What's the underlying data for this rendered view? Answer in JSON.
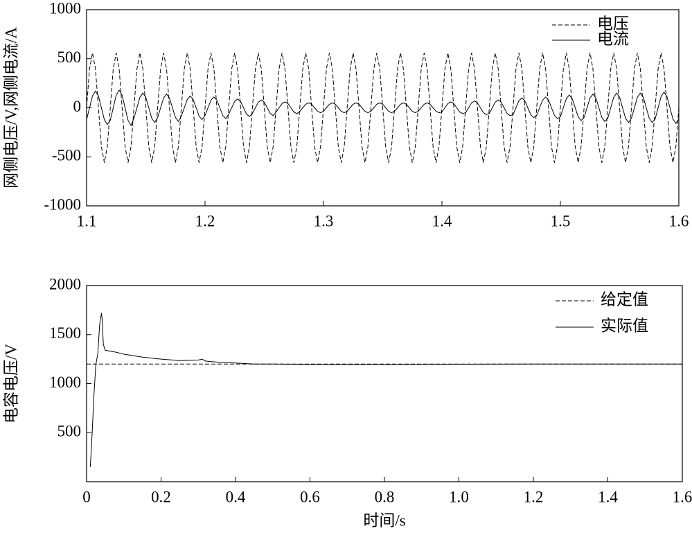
{
  "chart_data": [
    {
      "type": "line",
      "ylabel": "网侧电压/V,网侧电流/A",
      "xlim": [
        1.1,
        1.6
      ],
      "xticks": [
        1.1,
        1.2,
        1.3,
        1.4,
        1.5,
        1.6
      ],
      "ylim": [
        -1000,
        1000
      ],
      "yticks": [
        -1000,
        -500,
        0,
        500,
        1000
      ],
      "legend": "upper right",
      "x": [
        1.1,
        1.1025,
        1.105,
        1.1075,
        1.11,
        1.1125,
        1.115,
        1.1175,
        1.12,
        1.1225,
        1.125,
        1.1275,
        1.13,
        1.1325,
        1.135,
        1.1375,
        1.14,
        1.1425,
        1.145,
        1.1475,
        1.15,
        1.1525,
        1.155,
        1.1575,
        1.16,
        1.1625,
        1.165,
        1.1675,
        1.17,
        1.1725,
        1.175,
        1.1775,
        1.18,
        1.1825,
        1.185,
        1.1875,
        1.19,
        1.1925,
        1.195,
        1.1975,
        1.2,
        1.2025,
        1.205,
        1.2075,
        1.21,
        1.2125,
        1.215,
        1.2175,
        1.22,
        1.2225,
        1.225,
        1.2275,
        1.23,
        1.2325,
        1.235,
        1.2375,
        1.24,
        1.2425,
        1.245,
        1.2475,
        1.25,
        1.2525,
        1.255,
        1.2575,
        1.26,
        1.2625,
        1.265,
        1.2675,
        1.27,
        1.2725,
        1.275,
        1.2775,
        1.28,
        1.2825,
        1.285,
        1.2875,
        1.29,
        1.2925,
        1.295,
        1.2975,
        1.3,
        1.3025,
        1.305,
        1.3075,
        1.31,
        1.3125,
        1.315,
        1.3175,
        1.32,
        1.3225,
        1.325,
        1.3275,
        1.33,
        1.3325,
        1.335,
        1.3375,
        1.34,
        1.3425,
        1.345,
        1.3475,
        1.35,
        1.3525,
        1.355,
        1.3575,
        1.36,
        1.3625,
        1.365,
        1.3675,
        1.37,
        1.3725,
        1.375,
        1.3775,
        1.38,
        1.3825,
        1.385,
        1.3875,
        1.39,
        1.3925,
        1.395,
        1.3975,
        1.4,
        1.4025,
        1.405,
        1.4075,
        1.41,
        1.4125,
        1.415,
        1.4175,
        1.42,
        1.4225,
        1.425,
        1.4275,
        1.43,
        1.4325,
        1.435,
        1.4375,
        1.44,
        1.4425,
        1.445,
        1.4475,
        1.45,
        1.4525,
        1.455,
        1.4575,
        1.46,
        1.4625,
        1.465,
        1.4675,
        1.47,
        1.4725,
        1.475,
        1.4775,
        1.48,
        1.4825,
        1.485,
        1.4875,
        1.49,
        1.4925,
        1.495,
        1.4975,
        1.5,
        1.5025,
        1.505,
        1.5075,
        1.51,
        1.5125,
        1.515,
        1.5175,
        1.52,
        1.5225,
        1.525,
        1.5275,
        1.53,
        1.5325,
        1.535,
        1.5375,
        1.54,
        1.5425,
        1.545,
        1.5475,
        1.55,
        1.5525,
        1.555,
        1.5575,
        1.56,
        1.5625,
        1.565,
        1.5675,
        1.57,
        1.5725,
        1.575,
        1.5775,
        1.58,
        1.5825,
        1.585,
        1.5875,
        1.59,
        1.5925,
        1.595,
        1.5975,
        1.6
      ],
      "series": [
        {
          "name": "电压",
          "color": "#000000",
          "style": "dashed",
          "values": [
            0,
            396,
            560,
            396,
            0,
            -396,
            -560,
            -396,
            0,
            396,
            560,
            396,
            0,
            -396,
            -560,
            -396,
            0,
            396,
            560,
            396,
            0,
            -396,
            -560,
            -396,
            0,
            396,
            560,
            396,
            0,
            -396,
            -560,
            -396,
            0,
            396,
            560,
            396,
            0,
            -396,
            -560,
            -396,
            0,
            396,
            560,
            396,
            0,
            -396,
            -560,
            -396,
            0,
            396,
            560,
            396,
            0,
            -396,
            -560,
            -396,
            0,
            396,
            560,
            396,
            0,
            -396,
            -560,
            -396,
            0,
            396,
            560,
            396,
            0,
            -396,
            -560,
            -396,
            0,
            396,
            560,
            396,
            0,
            -396,
            -560,
            -396,
            0,
            396,
            560,
            396,
            0,
            -396,
            -560,
            -396,
            0,
            396,
            560,
            396,
            0,
            -396,
            -560,
            -396,
            0,
            396,
            560,
            396,
            0,
            -396,
            -560,
            -396,
            0,
            396,
            560,
            396,
            0,
            -396,
            -560,
            -396,
            0,
            396,
            560,
            396,
            0,
            -396,
            -560,
            -396,
            0,
            396,
            560,
            396,
            0,
            -396,
            -560,
            -396,
            0,
            396,
            560,
            396,
            0,
            -396,
            -560,
            -396,
            0,
            396,
            560,
            396,
            0,
            -396,
            -560,
            -396,
            0,
            396,
            560,
            396,
            0,
            -396,
            -560,
            -396,
            0,
            396,
            560,
            396,
            0,
            -396,
            -560,
            -396,
            0,
            396,
            560,
            396,
            0,
            -396,
            -560,
            -396,
            0,
            396,
            560,
            396,
            0,
            -396,
            -560,
            -396,
            0,
            396,
            560,
            396,
            0,
            -396,
            -560,
            -396,
            0,
            396,
            560,
            396,
            0,
            -396,
            -560,
            -396,
            0,
            396,
            560,
            396,
            0,
            -396,
            -560,
            -396,
            0
          ]
        },
        {
          "name": "电流",
          "color": "#000000",
          "style": "solid",
          "values": [
            -121,
            0,
            121,
            170,
            121,
            0,
            -121,
            -170,
            -128,
            0,
            128,
            180,
            128,
            0,
            -128,
            -180,
            -107,
            0,
            107,
            150,
            107,
            0,
            -107,
            -150,
            -99,
            0,
            99,
            140,
            99,
            0,
            -99,
            -140,
            -85,
            0,
            85,
            120,
            85,
            0,
            -85,
            -120,
            -78,
            0,
            78,
            110,
            78,
            0,
            -78,
            -110,
            -64,
            0,
            64,
            90,
            64,
            0,
            -64,
            -90,
            -57,
            0,
            57,
            80,
            57,
            0,
            -57,
            -80,
            -43,
            0,
            43,
            60,
            43,
            0,
            -43,
            -60,
            -36,
            0,
            36,
            50,
            36,
            0,
            -36,
            -50,
            -36,
            0,
            36,
            50,
            36,
            0,
            -36,
            -50,
            -36,
            0,
            36,
            50,
            36,
            0,
            -36,
            -50,
            -36,
            0,
            36,
            50,
            36,
            0,
            -36,
            -50,
            -36,
            0,
            36,
            50,
            36,
            0,
            -36,
            -50,
            -36,
            0,
            36,
            50,
            36,
            0,
            -36,
            -50,
            -43,
            0,
            43,
            60,
            43,
            0,
            -43,
            -60,
            -50,
            0,
            50,
            70,
            50,
            0,
            -50,
            -70,
            -57,
            0,
            57,
            80,
            57,
            0,
            -57,
            -80,
            -71,
            0,
            71,
            100,
            71,
            0,
            -71,
            -100,
            -78,
            0,
            78,
            110,
            78,
            0,
            -78,
            -110,
            -92,
            0,
            92,
            130,
            92,
            0,
            -92,
            -130,
            -99,
            0,
            99,
            140,
            99,
            0,
            -99,
            -140,
            -107,
            0,
            107,
            150,
            107,
            0,
            -107,
            -150,
            -107,
            0,
            107,
            150,
            107,
            0,
            -107,
            -150,
            -114,
            0,
            114,
            160,
            114,
            0,
            -114,
            -160,
            -114
          ]
        }
      ]
    },
    {
      "type": "line",
      "ylabel": "电容电压/V",
      "xlabel": "时间/s",
      "xlim": [
        0,
        1.6
      ],
      "xticks": [
        0,
        0.2,
        0.4,
        0.6,
        0.8,
        {
          "value": 1,
          "label": "1.0"
        },
        1.2,
        1.4,
        1.6
      ],
      "ylim": [
        0,
        2000
      ],
      "yticks": [
        500,
        1000,
        1500,
        2000
      ],
      "legend": "upper right",
      "series": [
        {
          "name": "给定值",
          "color": "#000000",
          "style": "dashed",
          "x": [
            0,
            1.6
          ],
          "values": [
            1200,
            1200
          ]
        },
        {
          "name": "实际值",
          "color": "#000000",
          "style": "solid",
          "x": [
            0.01,
            0.015,
            0.02,
            0.025,
            0.03,
            0.035,
            0.04,
            0.042,
            0.045,
            0.05,
            0.08,
            0.1,
            0.15,
            0.2,
            0.25,
            0.3,
            0.31,
            0.32,
            0.35,
            0.4,
            0.45,
            0.5,
            0.6,
            0.8,
            1.0,
            1.2,
            1.4,
            1.6
          ],
          "values": [
            150,
            500,
            900,
            1200,
            1300,
            1600,
            1720,
            1650,
            1400,
            1340,
            1320,
            1300,
            1270,
            1250,
            1235,
            1240,
            1250,
            1230,
            1220,
            1210,
            1200,
            1200,
            1195,
            1195,
            1198,
            1200,
            1200,
            1200
          ]
        }
      ]
    }
  ]
}
